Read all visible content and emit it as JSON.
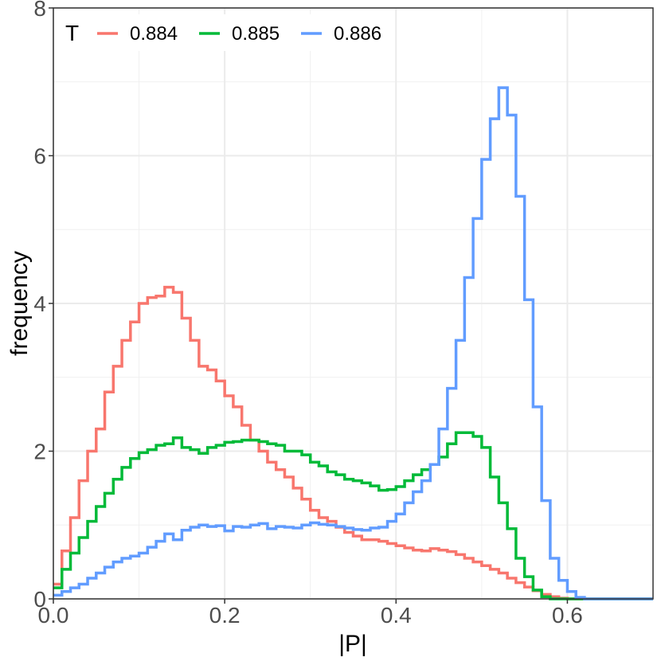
{
  "chart_data": {
    "type": "line",
    "xlabel": "|P|",
    "ylabel": "frequency",
    "xlim": [
      0,
      0.7
    ],
    "ylim": [
      0,
      8
    ],
    "x_ticks": [
      "0.0",
      "0.2",
      "0.4",
      "0.6"
    ],
    "x_tick_values": [
      0,
      0.2,
      0.4,
      0.6
    ],
    "y_ticks": [
      "0",
      "2",
      "4",
      "6",
      "8"
    ],
    "y_tick_values": [
      0,
      2,
      4,
      6,
      8
    ],
    "grid": true,
    "legend": {
      "title": "T",
      "position": "top-left"
    },
    "bin_width": 0.01,
    "x": [
      0.005,
      0.015,
      0.025,
      0.035,
      0.045,
      0.055,
      0.065,
      0.075,
      0.085,
      0.095,
      0.105,
      0.115,
      0.125,
      0.135,
      0.145,
      0.155,
      0.165,
      0.175,
      0.185,
      0.195,
      0.205,
      0.215,
      0.225,
      0.235,
      0.245,
      0.255,
      0.265,
      0.275,
      0.285,
      0.295,
      0.305,
      0.315,
      0.325,
      0.335,
      0.345,
      0.355,
      0.365,
      0.375,
      0.385,
      0.395,
      0.405,
      0.415,
      0.425,
      0.435,
      0.445,
      0.455,
      0.465,
      0.475,
      0.485,
      0.495,
      0.505,
      0.515,
      0.525,
      0.535,
      0.545,
      0.555,
      0.565,
      0.575,
      0.585,
      0.595,
      0.605,
      0.615,
      0.625,
      0.635,
      0.645,
      0.655,
      0.665,
      0.675,
      0.685,
      0.695
    ],
    "series": [
      {
        "name": "0.884",
        "color": "#F8766D",
        "values": [
          0.2,
          0.65,
          1.1,
          1.6,
          2.0,
          2.3,
          2.8,
          3.15,
          3.5,
          3.75,
          4.0,
          4.08,
          4.1,
          4.22,
          4.15,
          3.8,
          3.5,
          3.15,
          3.1,
          2.95,
          2.75,
          2.6,
          2.35,
          2.15,
          2.0,
          1.85,
          1.75,
          1.65,
          1.5,
          1.35,
          1.2,
          1.1,
          1.05,
          0.97,
          0.9,
          0.85,
          0.8,
          0.8,
          0.78,
          0.75,
          0.72,
          0.69,
          0.66,
          0.65,
          0.68,
          0.66,
          0.64,
          0.6,
          0.55,
          0.5,
          0.45,
          0.4,
          0.35,
          0.28,
          0.22,
          0.16,
          0.11,
          0.06,
          0.03,
          0.01,
          0.0,
          0.0,
          0.0,
          0.0,
          0.0,
          0.0,
          0.0,
          0.0,
          0.0,
          0.0
        ]
      },
      {
        "name": "0.885",
        "color": "#00BA38",
        "values": [
          0.15,
          0.4,
          0.62,
          0.83,
          1.05,
          1.25,
          1.43,
          1.62,
          1.78,
          1.9,
          1.98,
          2.02,
          2.08,
          2.1,
          2.18,
          2.05,
          2.02,
          1.97,
          2.05,
          2.08,
          2.12,
          2.13,
          2.15,
          2.15,
          2.13,
          2.1,
          2.08,
          2.0,
          2.0,
          1.95,
          1.85,
          1.8,
          1.72,
          1.68,
          1.62,
          1.6,
          1.57,
          1.53,
          1.47,
          1.48,
          1.52,
          1.6,
          1.68,
          1.75,
          1.82,
          1.92,
          2.1,
          2.25,
          2.25,
          2.2,
          2.05,
          1.65,
          1.3,
          0.95,
          0.55,
          0.3,
          0.12,
          0.03,
          0.0,
          0.0,
          0.0,
          0.0,
          0.0,
          0.0,
          0.0,
          0.0,
          0.0,
          0.0,
          0.0,
          0.0
        ]
      },
      {
        "name": "0.886",
        "color": "#619CFF",
        "values": [
          0.05,
          0.1,
          0.15,
          0.2,
          0.28,
          0.35,
          0.43,
          0.5,
          0.55,
          0.58,
          0.62,
          0.7,
          0.78,
          0.88,
          0.8,
          0.93,
          0.97,
          1.0,
          0.98,
          0.99,
          0.92,
          0.98,
          0.97,
          1.0,
          1.02,
          0.95,
          0.98,
          0.97,
          0.96,
          1.0,
          1.03,
          1.01,
          1.0,
          0.98,
          0.96,
          0.94,
          0.93,
          0.96,
          0.97,
          1.05,
          1.15,
          1.3,
          1.45,
          1.6,
          1.82,
          2.3,
          2.85,
          3.5,
          4.35,
          5.15,
          5.95,
          6.5,
          6.92,
          6.55,
          5.45,
          4.05,
          2.6,
          1.33,
          0.55,
          0.25,
          0.1,
          0.02,
          0.0,
          0.0,
          0.0,
          0.0,
          0.0,
          0.0,
          0.0,
          0.0
        ]
      }
    ]
  }
}
